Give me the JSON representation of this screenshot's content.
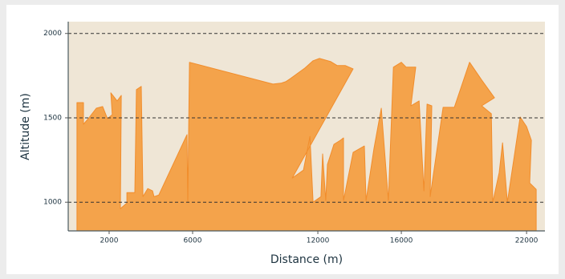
{
  "chart_data": {
    "type": "area",
    "x_label": "Distance (m)",
    "y_label": "Altitude (m)",
    "x": [
      460,
      770,
      770,
      1000,
      1385,
      1690,
      1920,
      2150,
      2080,
      2385,
      2580,
      2540,
      2850,
      2850,
      3230,
      3310,
      3540,
      3620,
      3850,
      4080,
      4150,
      4380,
      5730,
      5770,
      5850,
      9850,
      10230,
      10460,
      10690,
      11380,
      11770,
      12080,
      12620,
      12920,
      13310,
      13690,
      10770,
      11310,
      11620,
      11770,
      12150,
      12230,
      12380,
      12460,
      12770,
      13080,
      13230,
      13230,
      13690,
      14230,
      14310,
      14690,
      15040,
      15380,
      15620,
      16000,
      16230,
      16690,
      16460,
      16850,
      17080,
      17230,
      17460,
      17380,
      18000,
      18540,
      19270,
      19850,
      20460,
      19850,
      20310,
      20380,
      20690,
      20850,
      21080,
      21690,
      22000,
      22230,
      22150,
      22460
    ],
    "values": [
      1590,
      1590,
      1462,
      1495,
      1557,
      1567,
      1495,
      1519,
      1648,
      1600,
      1633,
      962,
      995,
      1057,
      1057,
      1667,
      1686,
      1033,
      1081,
      1067,
      1033,
      1043,
      1400,
      1000,
      1829,
      1700,
      1705,
      1714,
      1733,
      1795,
      1838,
      1852,
      1833,
      1810,
      1810,
      1790,
      1143,
      1190,
      1390,
      1000,
      1033,
      1286,
      1010,
      1224,
      1343,
      1367,
      1381,
      1010,
      1295,
      1333,
      1010,
      1319,
      1557,
      1010,
      1800,
      1829,
      1800,
      1800,
      1571,
      1600,
      1067,
      1581,
      1571,
      1033,
      1562,
      1562,
      1829,
      1724,
      1619,
      1571,
      1524,
      1000,
      1176,
      1352,
      1000,
      1505,
      1448,
      1367,
      1114,
      1076
    ],
    "color": "#f4a34b",
    "line_color": "#f18d2c",
    "background": "#efe6d6",
    "xlim": [
      40,
      22880
    ],
    "ylim": [
      830,
      2070
    ],
    "xticks": [
      2000,
      6000,
      12000,
      16000,
      22000
    ],
    "yticks": [
      1000,
      1500,
      2000
    ],
    "grid": true
  }
}
